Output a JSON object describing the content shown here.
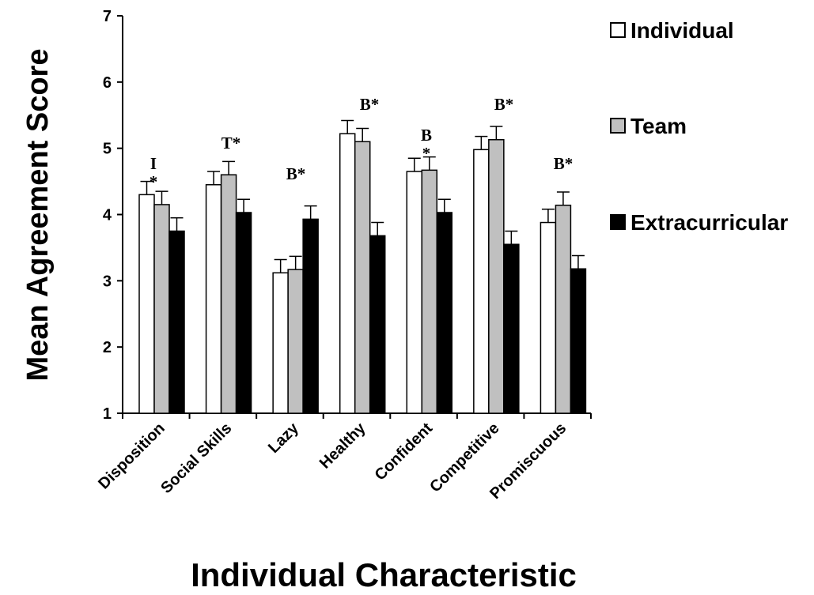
{
  "chart_data": {
    "type": "bar",
    "title": "",
    "xlabel": "Individual Characteristic",
    "ylabel": "Mean Agreement Score",
    "ylim": [
      1,
      7
    ],
    "yticks": [
      "1",
      "2",
      "3",
      "4",
      "5",
      "6",
      "7"
    ],
    "grid": false,
    "legend_position": "right",
    "categories": [
      "Disposition",
      "Social Skills",
      "Lazy",
      "Healthy",
      "Confident",
      "Competitive",
      "Promiscuous"
    ],
    "series": [
      {
        "name": "Individual",
        "color": "#ffffff",
        "values": [
          4.3,
          4.45,
          3.12,
          5.22,
          4.65,
          4.98,
          3.88
        ],
        "errors": [
          0.2,
          0.2,
          0.2,
          0.2,
          0.2,
          0.2,
          0.2
        ]
      },
      {
        "name": "Team",
        "color": "#c0c0c0",
        "values": [
          4.15,
          4.6,
          3.17,
          5.1,
          4.67,
          5.13,
          4.14
        ],
        "errors": [
          0.2,
          0.2,
          0.2,
          0.2,
          0.2,
          0.2,
          0.2
        ]
      },
      {
        "name": "Extracurricular",
        "color": "#000000",
        "values": [
          3.75,
          4.03,
          3.93,
          3.68,
          4.03,
          3.55,
          3.18
        ],
        "errors": [
          0.2,
          0.2,
          0.2,
          0.2,
          0.2,
          0.2,
          0.2
        ]
      }
    ],
    "annotations": [
      {
        "category": "Disposition",
        "lines": [
          "I",
          "*"
        ]
      },
      {
        "category": "Social Skills",
        "lines": [
          "T*"
        ]
      },
      {
        "category": "Lazy",
        "lines": [
          "B*"
        ]
      },
      {
        "category": "Healthy",
        "lines": [
          "B*"
        ]
      },
      {
        "category": "Confident",
        "lines": [
          "B",
          "*"
        ]
      },
      {
        "category": "Competitive",
        "lines": [
          "B*"
        ]
      },
      {
        "category": "Promiscuous",
        "lines": [
          "B*"
        ]
      }
    ]
  }
}
